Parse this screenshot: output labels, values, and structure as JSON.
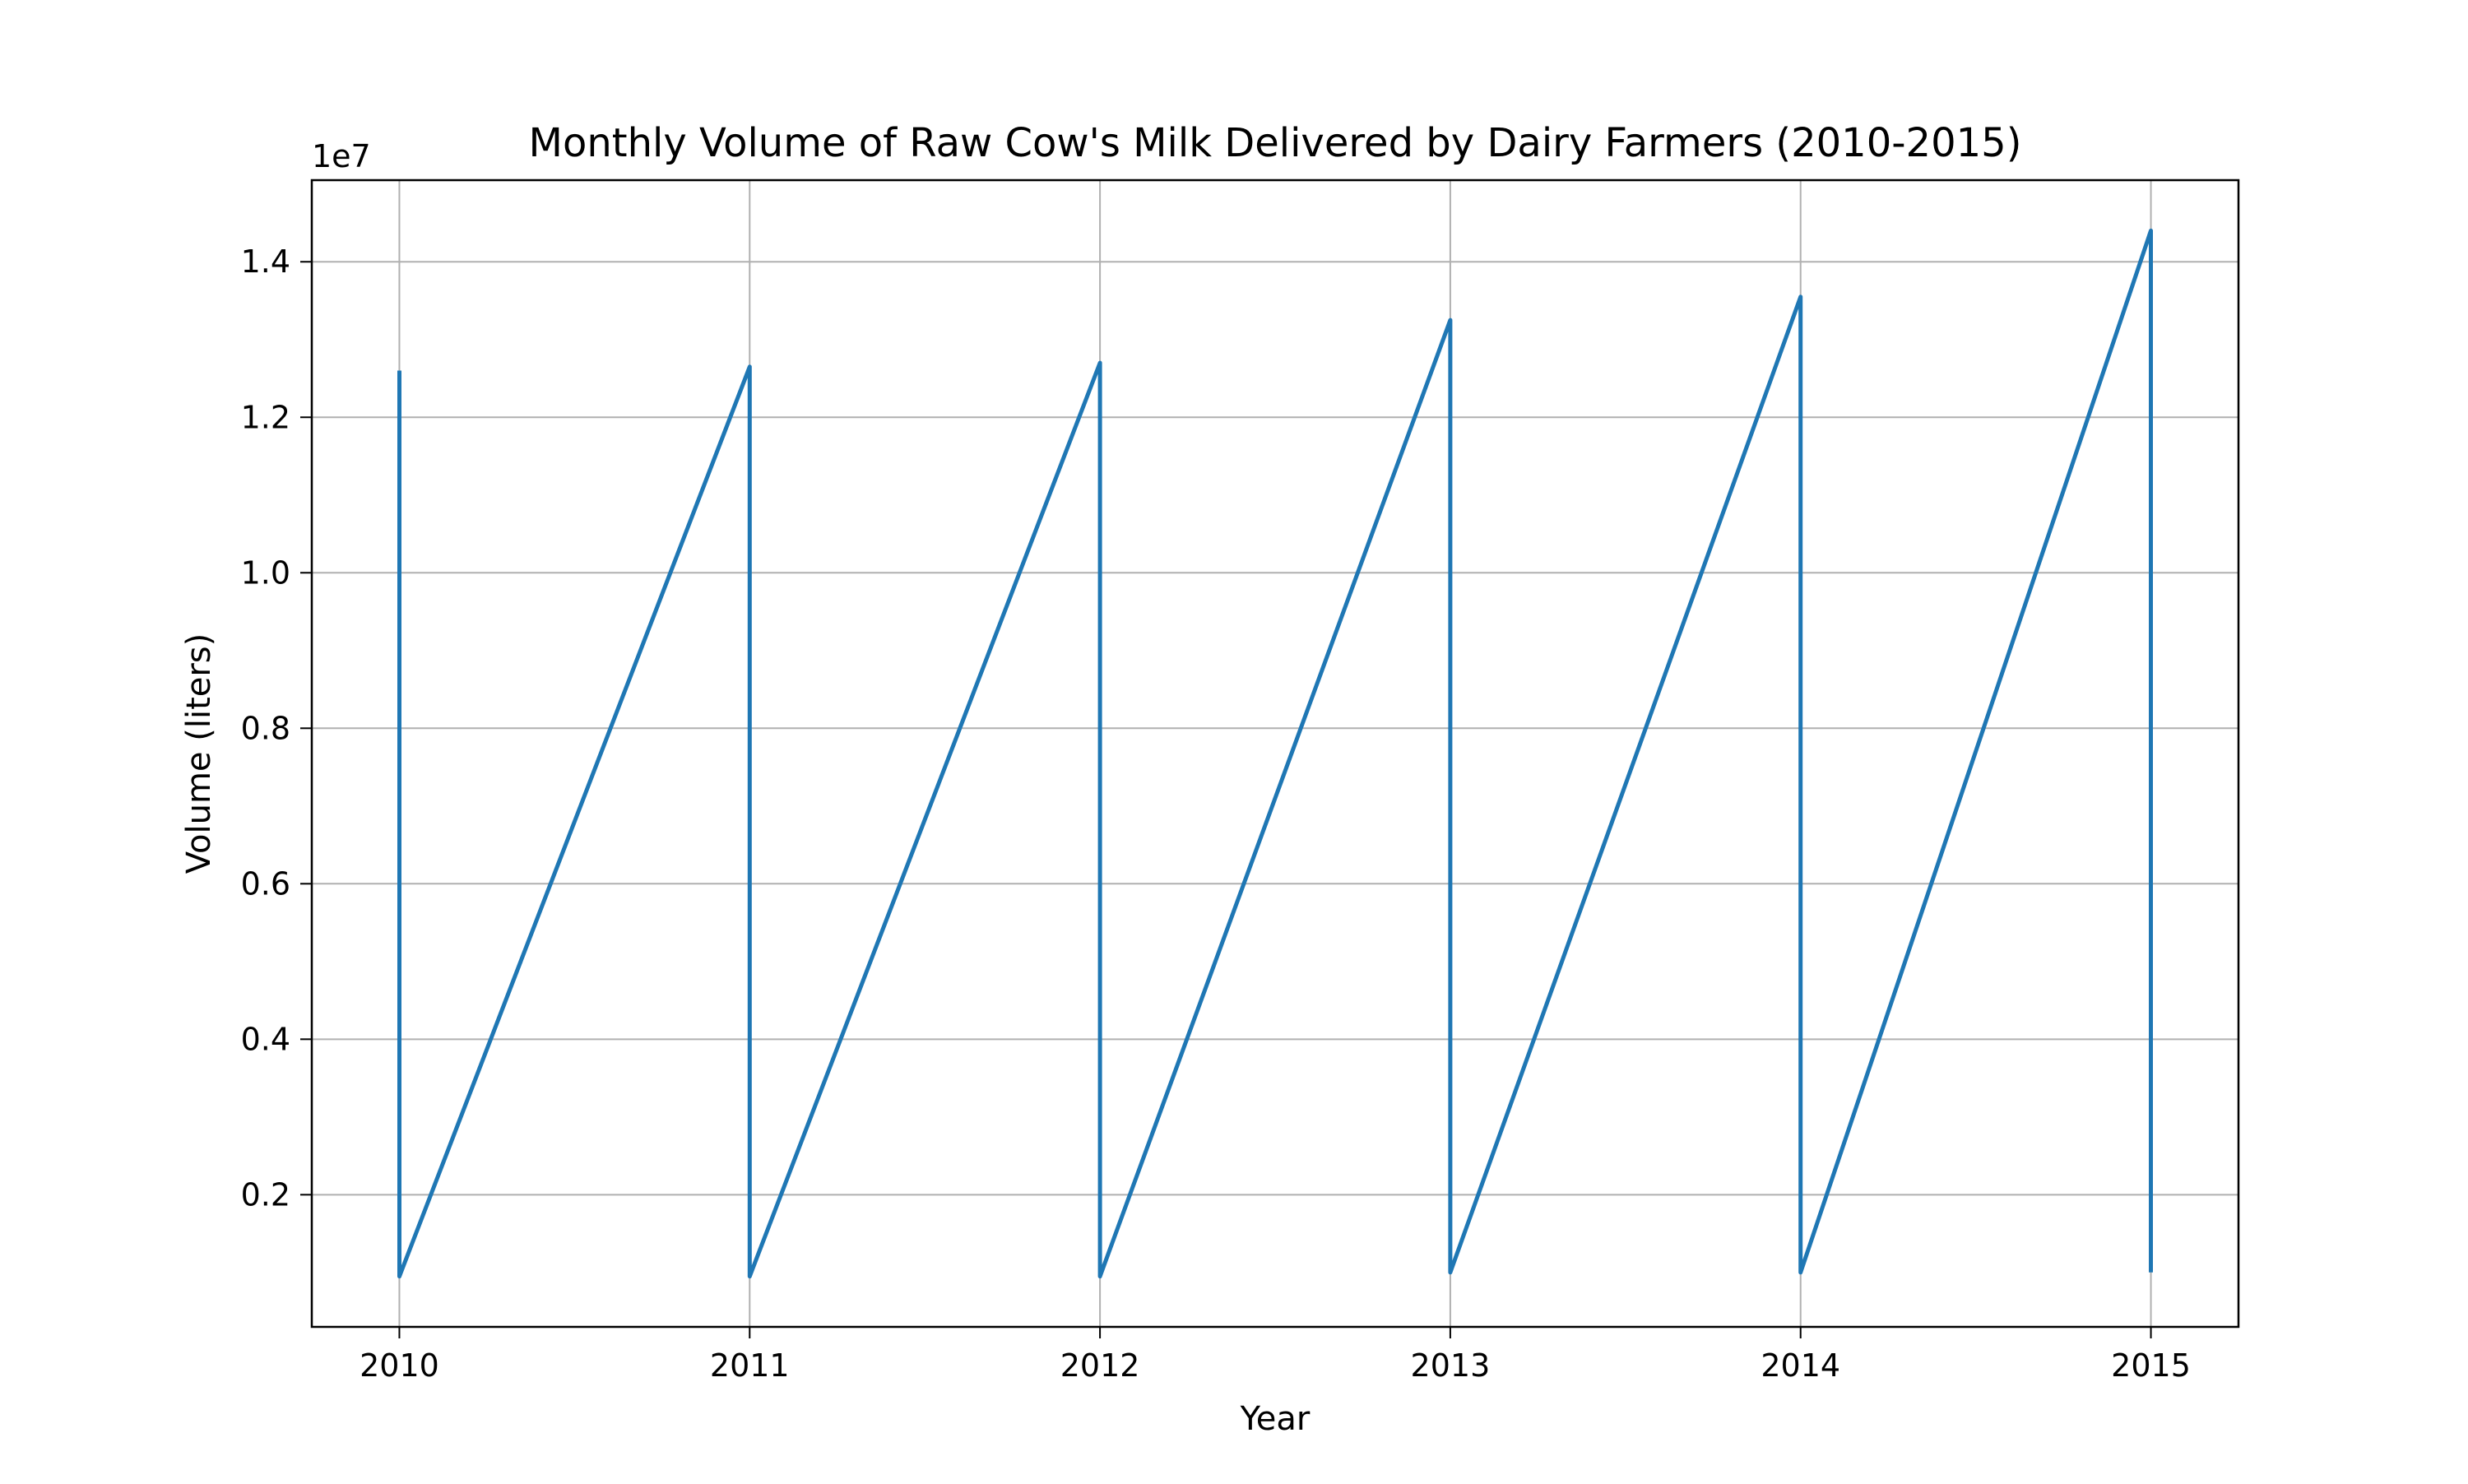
{
  "chart_data": {
    "type": "line",
    "title": "Monthly Volume of Raw Cow's Milk Delivered by Dairy Farmers (2010-2015)",
    "xlabel": "Year",
    "ylabel": "Volume (liters)",
    "y_offset_label": "1e7",
    "x_ticks": [
      "2010",
      "2011",
      "2012",
      "2013",
      "2014",
      "2015"
    ],
    "y_ticks": [
      "0.2",
      "0.4",
      "0.6",
      "0.8",
      "1.0",
      "1.2",
      "1.4"
    ],
    "xlim": [
      2009.75,
      2015.25
    ],
    "ylim": [
      0.03,
      1.505
    ],
    "grid": true,
    "colors": {
      "series": "#1f77b4",
      "grid": "#b0b0b0",
      "axes": "#000000"
    },
    "series": [
      {
        "values_unit": "1e7 liters",
        "points": [
          {
            "x": 2010,
            "y": 1.26
          },
          {
            "x": 2010,
            "y": 0.095
          },
          {
            "x": 2011,
            "y": 1.265
          },
          {
            "x": 2011,
            "y": 0.095
          },
          {
            "x": 2012,
            "y": 1.27
          },
          {
            "x": 2012,
            "y": 0.095
          },
          {
            "x": 2013,
            "y": 1.325
          },
          {
            "x": 2013,
            "y": 0.1
          },
          {
            "x": 2014,
            "y": 1.355
          },
          {
            "x": 2014,
            "y": 0.1
          },
          {
            "x": 2015,
            "y": 1.44
          },
          {
            "x": 2015,
            "y": 0.1
          }
        ]
      }
    ]
  }
}
